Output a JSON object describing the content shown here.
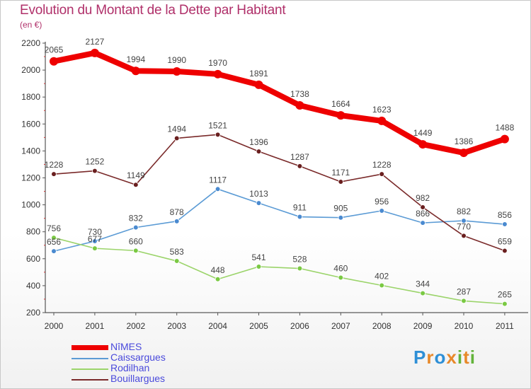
{
  "title": "Evolution du Montant de la Dette par Habitant",
  "subtitle": "(en €)",
  "logo": {
    "text": "Proxiti",
    "colors": [
      "#2e8fd6",
      "#e8892a",
      "#2e8fd6",
      "#e8892a",
      "#63b33a",
      "#e8892a",
      "#63b33a"
    ]
  },
  "chart_data": {
    "type": "line",
    "x": [
      "2000",
      "2001",
      "2002",
      "2003",
      "2004",
      "2005",
      "2006",
      "2007",
      "2008",
      "2009",
      "2010",
      "2011"
    ],
    "ylim": [
      200,
      2200
    ],
    "yticks": [
      200,
      400,
      600,
      800,
      1000,
      1200,
      1400,
      1600,
      1800,
      2000,
      2200
    ],
    "grid": false,
    "legend_position": "bottom-left",
    "series": [
      {
        "name": "NîMES",
        "color": "#ee0000",
        "values": [
          2065,
          2127,
          1994,
          1990,
          1970,
          1891,
          1738,
          1664,
          1623,
          1449,
          1386,
          1488
        ],
        "emphasis": true
      },
      {
        "name": "Caissargues",
        "color": "#5b9bd5",
        "marker": "#4a8ad0",
        "values": [
          656,
          730,
          832,
          878,
          1117,
          1013,
          911,
          905,
          956,
          866,
          882,
          856
        ]
      },
      {
        "name": "Rodilhan",
        "color": "#9bd46a",
        "marker": "#7ac943",
        "values": [
          756,
          677,
          660,
          583,
          448,
          541,
          528,
          460,
          402,
          344,
          287,
          265
        ]
      },
      {
        "name": "Bouillargues",
        "color": "#7a2a2a",
        "marker": "#6a1f1f",
        "values": [
          1228,
          1252,
          1149,
          1494,
          1521,
          1396,
          1287,
          1171,
          1228,
          982,
          770,
          659
        ]
      }
    ]
  }
}
